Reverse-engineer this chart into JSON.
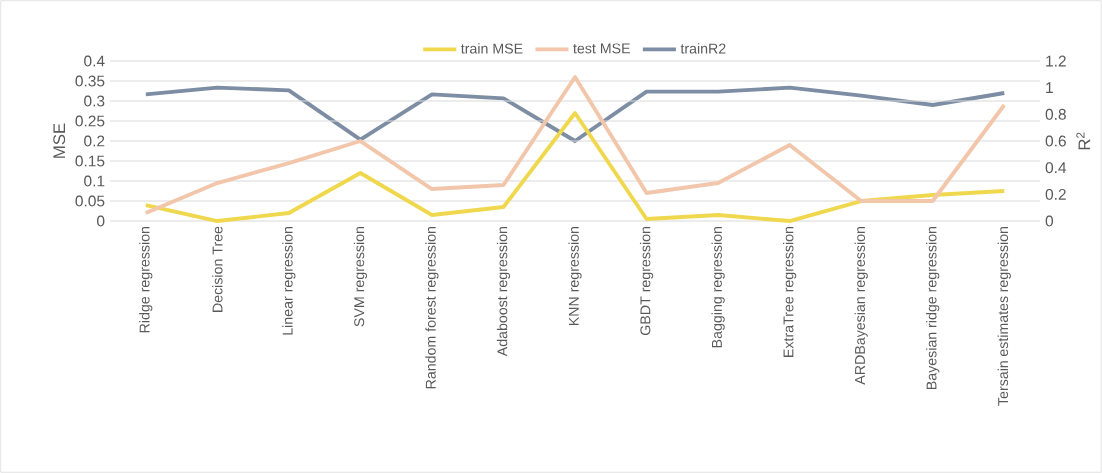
{
  "chart_data": {
    "type": "line",
    "categories": [
      "Ridge regression",
      "Decision Tree",
      "Linear regression",
      "SVM regression",
      "Random forest regression",
      "Adaboost regression",
      "KNN regression",
      "GBDT regression",
      "Bagging regression",
      "ExtraTree regression",
      "ARDBayesian regression",
      "Bayesian ridge regression",
      "Tersain estimates regression"
    ],
    "series": [
      {
        "name": "train MSE",
        "color": "#f0d84e",
        "values": [
          0.04,
          0.0,
          0.02,
          0.12,
          0.015,
          0.035,
          0.27,
          0.005,
          0.015,
          0.0,
          0.05,
          0.065,
          0.075
        ]
      },
      {
        "name": "test MSE",
        "color": "#f2c6aa",
        "values": [
          0.02,
          0.095,
          0.145,
          0.2,
          0.08,
          0.09,
          0.36,
          0.07,
          0.095,
          0.19,
          0.05,
          0.05,
          0.29
        ]
      },
      {
        "name": "trainR2",
        "color": "#7d8da3",
        "axis": "y2",
        "values": [
          0.95,
          1.0,
          0.98,
          0.61,
          0.95,
          0.92,
          0.6,
          0.97,
          0.97,
          1.0,
          0.94,
          0.87,
          0.96
        ]
      }
    ],
    "ylabel": "MSE",
    "y2label": "R$^{2}$",
    "ylim": [
      0,
      0.4
    ],
    "yticks": [
      0,
      0.05,
      0.1,
      0.15,
      0.2,
      0.25,
      0.3,
      0.35,
      0.4
    ],
    "y2lim": [
      0,
      1.2
    ],
    "y2ticks": [
      0,
      0.2,
      0.4,
      0.6,
      0.8,
      1,
      1.2
    ],
    "grid": "y",
    "legend": "top",
    "marker": "none",
    "line_style": "solid"
  }
}
